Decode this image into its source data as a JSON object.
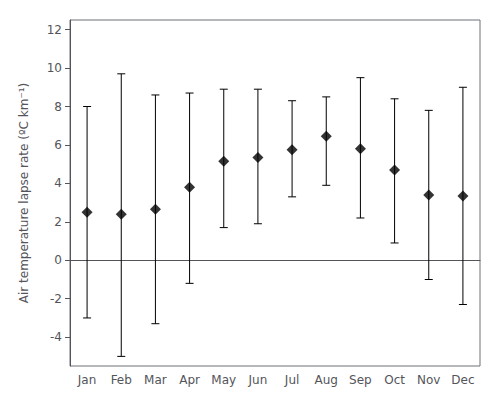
{
  "chart_data": {
    "type": "scatter",
    "ylabel": "Air temperature lapse rate (ºC km⁻¹)",
    "categories": [
      "Jan",
      "Feb",
      "Mar",
      "Apr",
      "May",
      "Jun",
      "Jul",
      "Aug",
      "Sep",
      "Oct",
      "Nov",
      "Dec"
    ],
    "values": [
      2.5,
      2.4,
      2.65,
      3.8,
      5.15,
      5.35,
      5.75,
      6.45,
      5.8,
      4.7,
      3.4,
      3.35
    ],
    "upper": [
      8.0,
      9.7,
      8.6,
      8.7,
      8.9,
      8.9,
      8.3,
      8.5,
      9.5,
      8.4,
      7.8,
      9.0
    ],
    "lower": [
      -3.0,
      -5.0,
      -3.3,
      -1.2,
      1.7,
      1.9,
      3.3,
      3.9,
      2.2,
      0.9,
      -1.0,
      -2.3
    ],
    "color": "black",
    "marker": "diamond",
    "ylim": [
      -5.5,
      12.5
    ],
    "yticks": [
      -4,
      -2,
      0,
      2,
      4,
      6,
      8,
      10,
      12
    ],
    "grid": false
  }
}
